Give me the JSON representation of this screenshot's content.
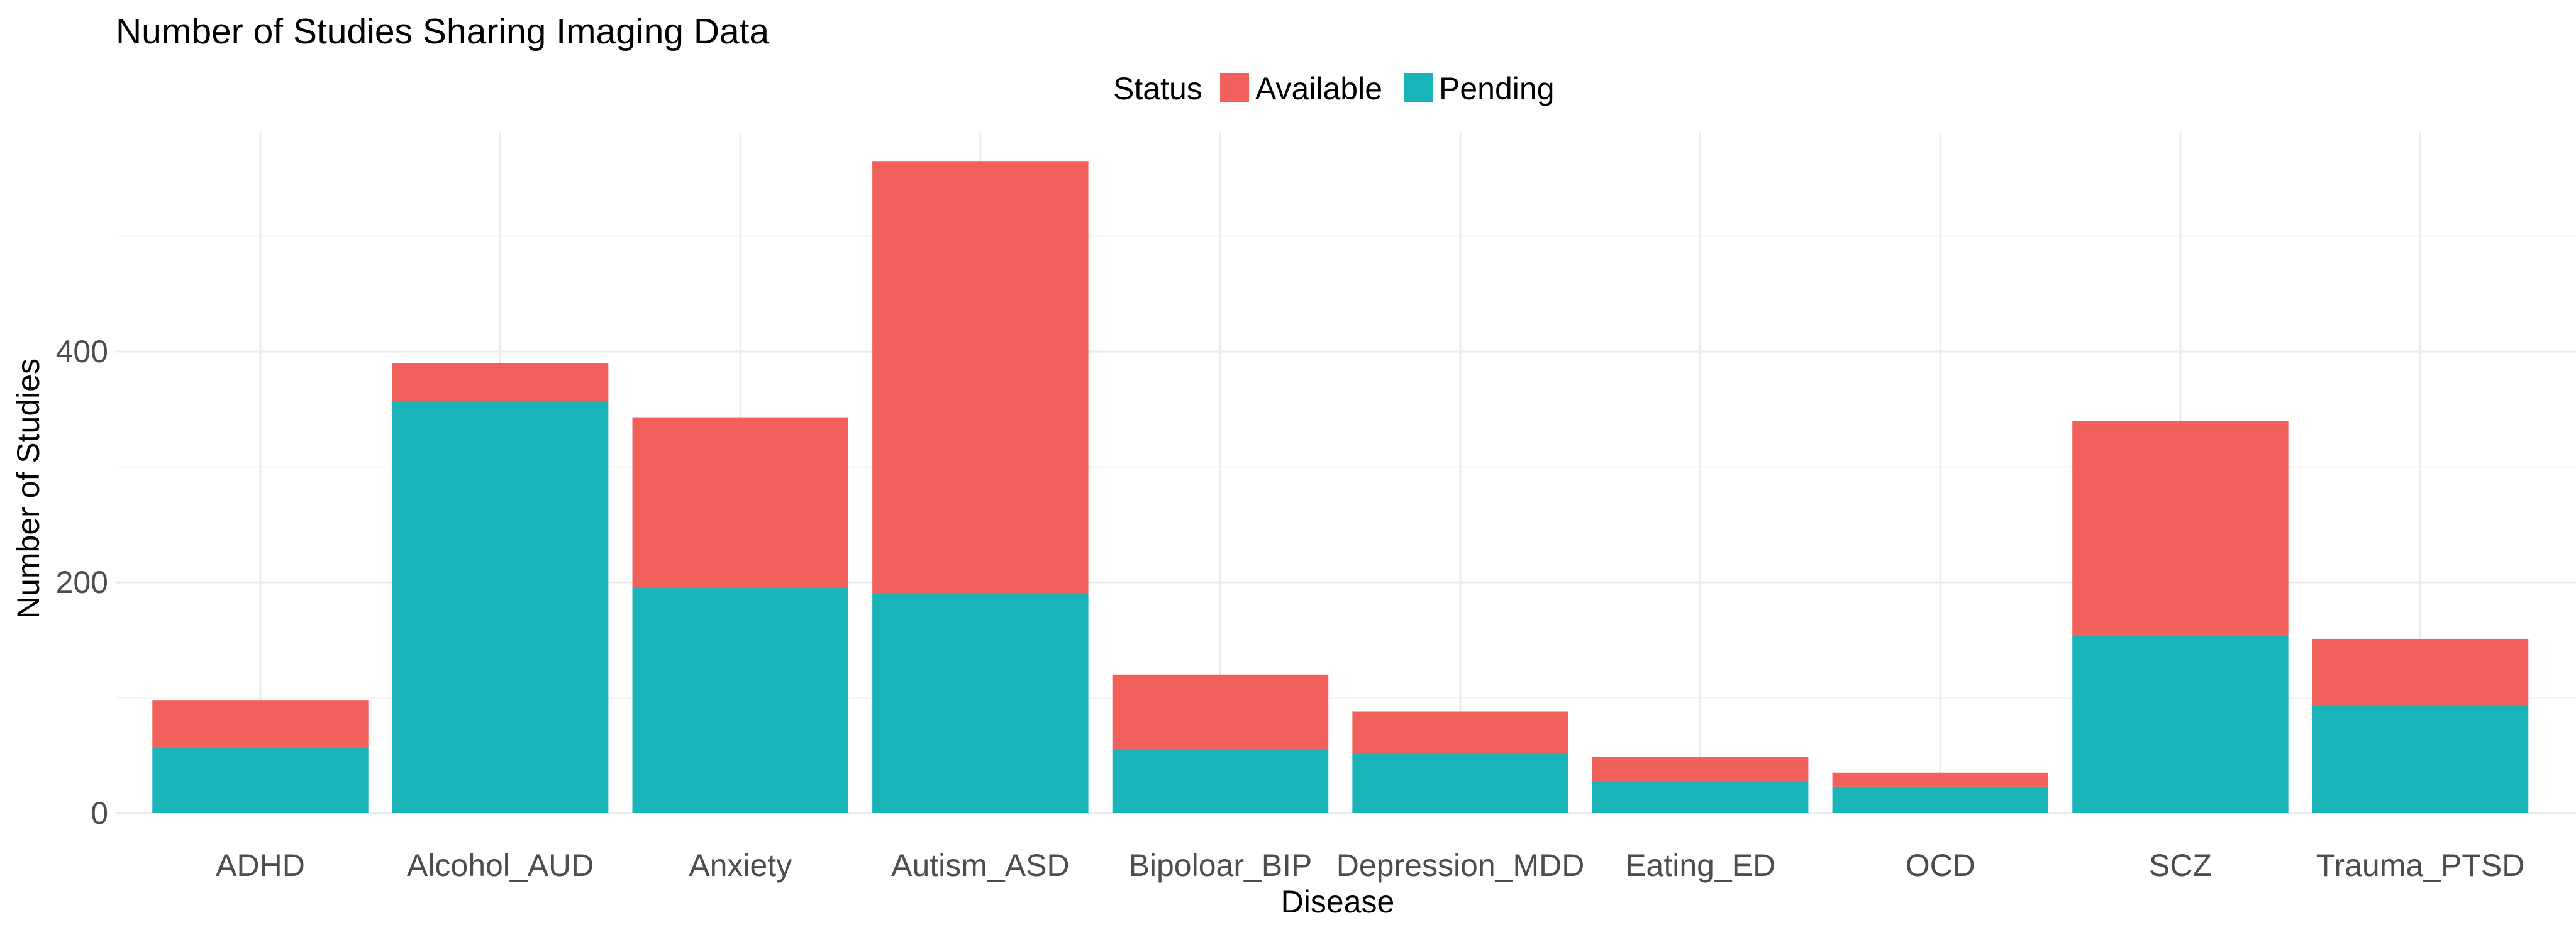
{
  "chart_data": {
    "type": "bar",
    "stacked": true,
    "title": "Number of Studies Sharing Imaging Data",
    "xlabel": "Disease",
    "ylabel": "Number of Studies",
    "ylim": [
      0,
      590
    ],
    "yticks": [
      0,
      200,
      400
    ],
    "ytick_labels": [
      "0",
      "200",
      "400"
    ],
    "categories": [
      "ADHD",
      "Alcohol_AUD",
      "Anxiety",
      "Autism_ASD",
      "Bipoloar_BIP",
      "Depression_MDD",
      "Eating_ED",
      "OCD",
      "SCZ",
      "Trauma_PTSD"
    ],
    "legend": {
      "title": "Status",
      "position": "top"
    },
    "series": [
      {
        "name": "Pending",
        "color": "#19b4b8",
        "values": [
          57,
          357,
          196,
          190,
          55,
          52,
          27,
          23,
          154,
          93
        ]
      },
      {
        "name": "Available",
        "color": "#f2605c",
        "values": [
          41,
          33,
          147,
          375,
          65,
          36,
          22,
          12,
          186,
          58
        ]
      }
    ]
  }
}
